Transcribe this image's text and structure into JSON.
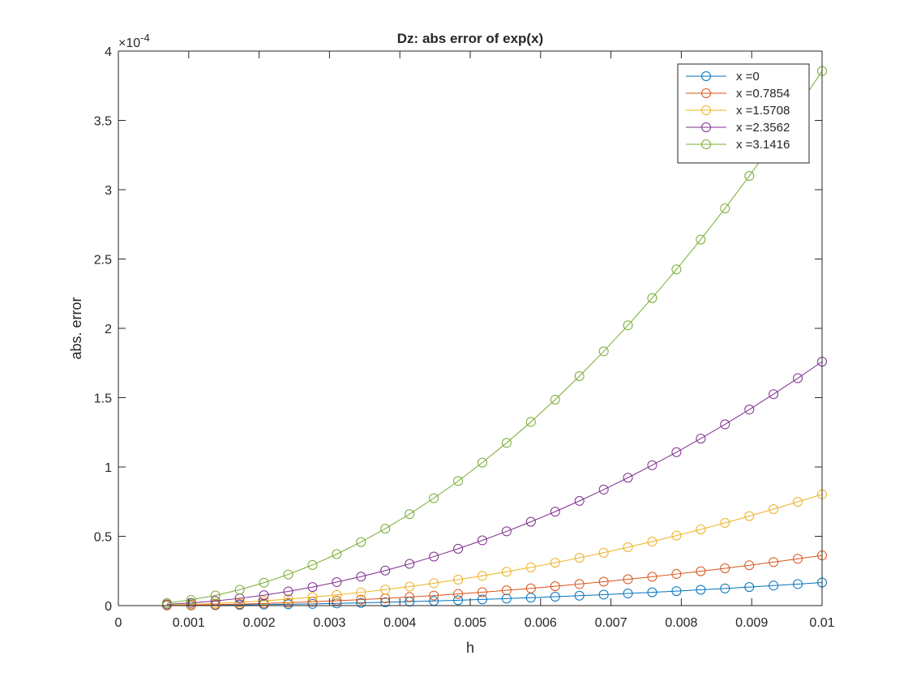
{
  "chart_data": {
    "type": "line",
    "title": "Dz: abs error of exp(x)",
    "xlabel": "h",
    "ylabel": "abs. error",
    "xlim": [
      0,
      0.01
    ],
    "ylim": [
      0,
      4
    ],
    "y_multiplier": {
      "base": "×10",
      "exponent": "-4"
    },
    "x_ticks": [
      0,
      0.001,
      0.002,
      0.003,
      0.004,
      0.005,
      0.006,
      0.007,
      0.008,
      0.009,
      0.01
    ],
    "x_tick_labels": [
      "0",
      "0.001",
      "0.002",
      "0.003",
      "0.004",
      "0.005",
      "0.006",
      "0.007",
      "0.008",
      "0.009",
      "0.01"
    ],
    "y_ticks": [
      0,
      0.5,
      1,
      1.5,
      2,
      2.5,
      3,
      3.5,
      4
    ],
    "y_tick_labels": [
      "0",
      "0.5",
      "1",
      "1.5",
      "2",
      "2.5",
      "3",
      "3.5",
      "4"
    ],
    "grid": false,
    "legend_position": "top-right",
    "marker": "circle",
    "x": [
      0.00069,
      0.001034,
      0.001379,
      0.001724,
      0.002069,
      0.002414,
      0.002759,
      0.003103,
      0.003448,
      0.003793,
      0.004138,
      0.004483,
      0.004828,
      0.005172,
      0.005517,
      0.005862,
      0.006207,
      0.006552,
      0.006897,
      0.007241,
      0.007586,
      0.007931,
      0.008276,
      0.008621,
      0.008966,
      0.00931,
      0.009655,
      0.01
    ],
    "series": [
      {
        "name": "x =0",
        "color": "#0072BD",
        "values": [
          0.00079,
          0.00179,
          0.00317,
          0.00496,
          0.00714,
          0.00972,
          0.0127,
          0.0161,
          0.0198,
          0.024,
          0.0285,
          0.0335,
          0.0388,
          0.0446,
          0.0507,
          0.0573,
          0.0642,
          0.0715,
          0.0793,
          0.0874,
          0.0959,
          0.1048,
          0.1141,
          0.1238,
          0.1339,
          0.1444,
          0.1553,
          0.1667
        ]
      },
      {
        "name": "x =0.7854",
        "color": "#D95319",
        "values": [
          0.0017,
          0.0039,
          0.0069,
          0.0108,
          0.0155,
          0.0211,
          0.0276,
          0.0349,
          0.043,
          0.0521,
          0.062,
          0.0727,
          0.0844,
          0.0968,
          0.1102,
          0.1244,
          0.1395,
          0.1554,
          0.1722,
          0.1898,
          0.2084,
          0.2277,
          0.248,
          0.269,
          0.291,
          0.3138,
          0.3375,
          0.3621
        ]
      },
      {
        "name": "x =1.5708",
        "color": "#EDB120",
        "values": [
          0.0038,
          0.0086,
          0.0153,
          0.0239,
          0.0344,
          0.0468,
          0.0611,
          0.0773,
          0.0954,
          0.1155,
          0.1374,
          0.1613,
          0.1871,
          0.2147,
          0.2443,
          0.2759,
          0.3093,
          0.3446,
          0.3818,
          0.421,
          0.462,
          0.505,
          0.5499,
          0.5967,
          0.6454,
          0.696,
          0.7485,
          0.803
        ]
      },
      {
        "name": "x =2.3562",
        "color": "#7E2F8E",
        "values": [
          0.0084,
          0.0188,
          0.0335,
          0.0523,
          0.0753,
          0.1025,
          0.1339,
          0.1694,
          0.2092,
          0.2531,
          0.3012,
          0.3535,
          0.41,
          0.4706,
          0.5355,
          0.6045,
          0.6777,
          0.7551,
          0.8367,
          0.9225,
          1.0125,
          1.1066,
          1.2049,
          1.3075,
          1.4142,
          1.5251,
          1.6402,
          1.7595
        ]
      },
      {
        "name": "x =3.1416",
        "color": "#77AC30",
        "values": [
          0.0183,
          0.0413,
          0.0734,
          0.1146,
          0.1651,
          0.2247,
          0.2934,
          0.3713,
          0.4585,
          0.5547,
          0.6602,
          0.7748,
          0.8985,
          1.0315,
          1.1736,
          1.3249,
          1.4853,
          1.655,
          1.8338,
          2.0217,
          2.2188,
          2.4251,
          2.6406,
          2.8653,
          3.0991,
          3.3421,
          3.5943,
          3.8557
        ]
      }
    ]
  }
}
